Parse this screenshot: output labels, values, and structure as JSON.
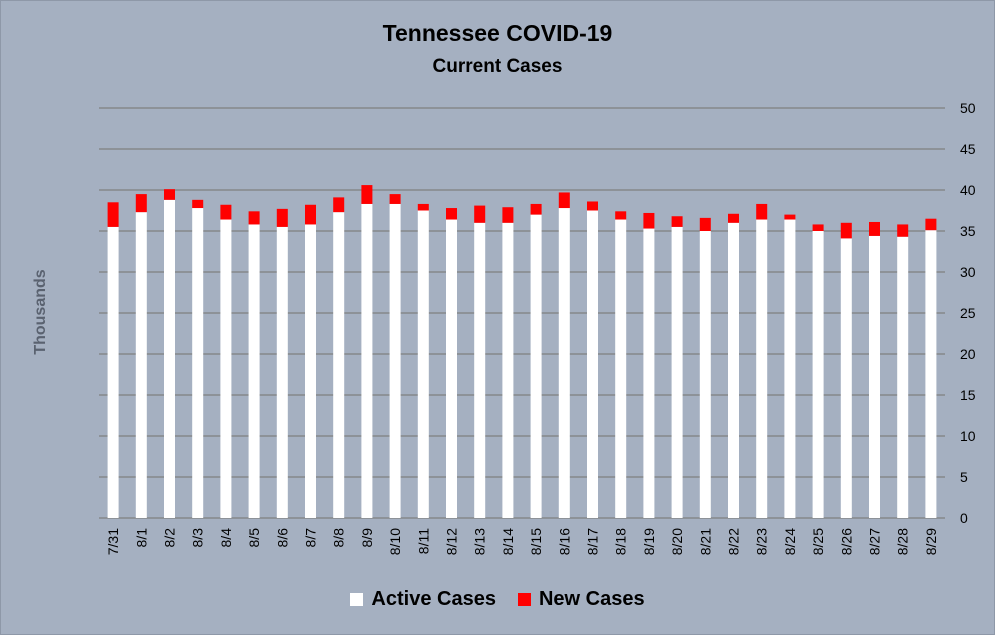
{
  "chart_data": {
    "type": "bar",
    "stacked": true,
    "title": "Tennessee COVID-19",
    "subtitle": "Current Cases",
    "xlabel": "",
    "ylabel": "Thousands",
    "ylim": [
      0,
      50
    ],
    "yticks": [
      0,
      5,
      10,
      15,
      20,
      25,
      30,
      35,
      40,
      45,
      50
    ],
    "y_axis_position": "right",
    "grid": true,
    "legend_position": "bottom",
    "categories": [
      "7/31",
      "8/1",
      "8/2",
      "8/3",
      "8/4",
      "8/5",
      "8/6",
      "8/7",
      "8/8",
      "8/9",
      "8/10",
      "8/11",
      "8/12",
      "8/13",
      "8/14",
      "8/15",
      "8/16",
      "8/17",
      "8/18",
      "8/19",
      "8/20",
      "8/21",
      "8/22",
      "8/23",
      "8/24",
      "8/25",
      "8/26",
      "8/27",
      "8/28",
      "8/29"
    ],
    "series": [
      {
        "name": "Active Cases",
        "color": "#ffffff",
        "values": [
          35.5,
          37.3,
          38.8,
          37.8,
          36.4,
          35.8,
          35.5,
          35.8,
          37.3,
          38.3,
          38.3,
          37.5,
          36.4,
          36.0,
          36.0,
          37.0,
          37.8,
          37.5,
          36.4,
          35.3,
          35.5,
          35.0,
          36.0,
          36.4,
          36.4,
          35.0,
          34.1,
          34.4,
          34.3,
          35.1
        ]
      },
      {
        "name": "New Cases",
        "color": "#ff0000",
        "values": [
          3.0,
          2.2,
          1.3,
          1.0,
          1.8,
          1.6,
          2.2,
          2.4,
          1.8,
          2.3,
          1.2,
          0.8,
          1.4,
          2.1,
          1.9,
          1.3,
          1.9,
          1.1,
          1.0,
          1.9,
          1.3,
          1.6,
          1.1,
          1.9,
          0.6,
          0.8,
          1.9,
          1.7,
          1.5,
          1.4
        ]
      }
    ]
  }
}
